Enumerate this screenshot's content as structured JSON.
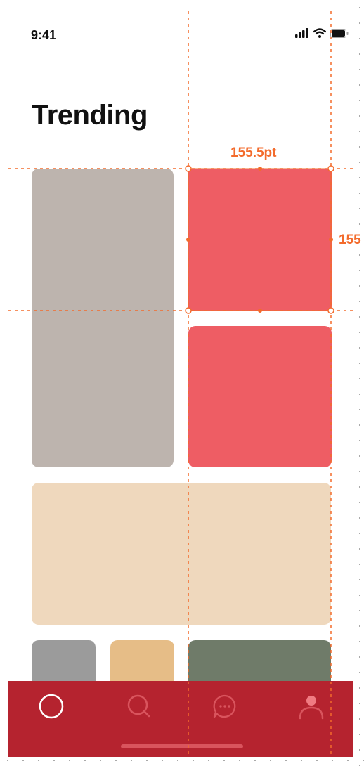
{
  "status_bar": {
    "time": "9:41",
    "signal_icon": "cellular-signal-icon",
    "wifi_icon": "wifi-icon",
    "battery_icon": "battery-icon"
  },
  "page": {
    "title": "Trending"
  },
  "tiles": [
    {
      "name": "gray-tile",
      "color": "#bdb4ae"
    },
    {
      "name": "red-tile-selected",
      "color": "#ee5d64"
    },
    {
      "name": "red-tile",
      "color": "#ee5d64"
    },
    {
      "name": "beige-tile",
      "color": "#efd8bd"
    },
    {
      "name": "gray-small-tile",
      "color": "#9b9b9b"
    },
    {
      "name": "tan-tile",
      "color": "#e6bd87"
    },
    {
      "name": "green-tile",
      "color": "#6f7b69"
    }
  ],
  "tab_bar": {
    "background": "#b5232f",
    "tabs": [
      {
        "icon": "home-circle-icon",
        "active": true
      },
      {
        "icon": "search-icon",
        "active": false
      },
      {
        "icon": "chat-bubble-icon",
        "active": false
      },
      {
        "icon": "profile-icon",
        "active": false
      }
    ]
  },
  "measurements": {
    "width_label": "155.5pt",
    "height_label": "155",
    "guide_color": "#f36b2c"
  }
}
